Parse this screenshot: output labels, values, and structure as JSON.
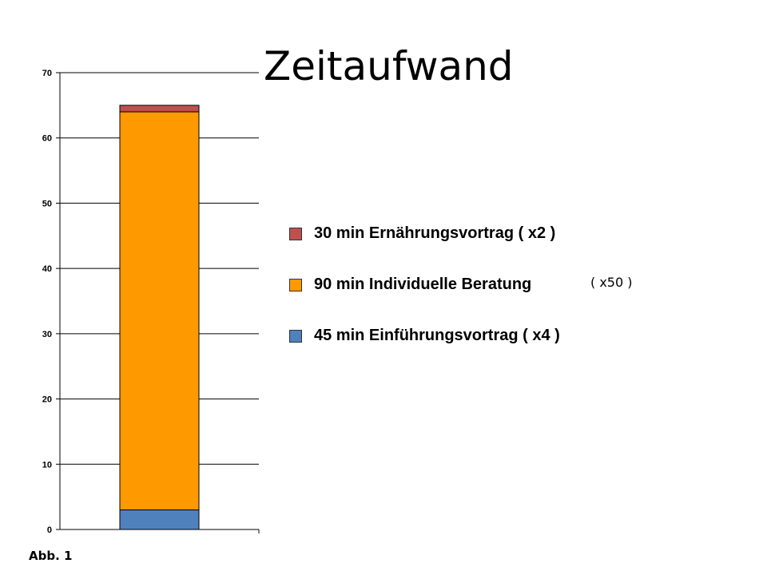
{
  "title": "Zeitaufwand",
  "caption": "Abb. 1",
  "chart_data": {
    "type": "bar",
    "stacked": true,
    "categories": [
      ""
    ],
    "series": [
      {
        "name": "45 min Einführungsvortrag ( x4 )",
        "values": [
          3
        ],
        "color": "#4f81bd"
      },
      {
        "name": "90 min Individuelle Beratung",
        "values": [
          61
        ],
        "color": "#ff9900"
      },
      {
        "name": "30 min Ernährungsvortrag ( x2 )",
        "values": [
          1
        ],
        "color": "#c0504d"
      }
    ],
    "ylim": [
      0,
      70
    ],
    "yticks": [
      "0",
      "10",
      "20",
      "30",
      "40",
      "50",
      "60",
      "70"
    ],
    "grid": true,
    "legend_position": "right",
    "legend_order": [
      2,
      1,
      0
    ],
    "legend_note": "( x50 )"
  }
}
